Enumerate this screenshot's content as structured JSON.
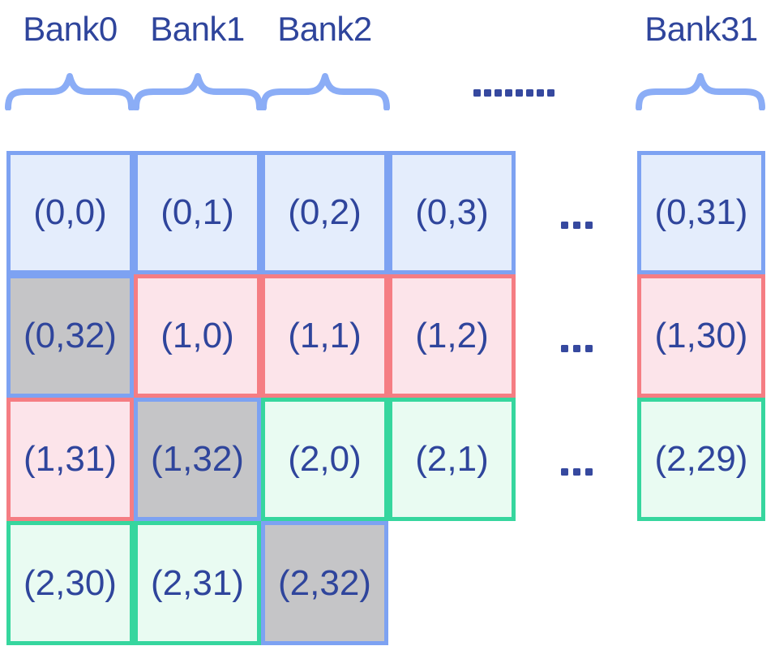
{
  "header": {
    "banks": [
      {
        "label": "Bank0"
      },
      {
        "label": "Bank1"
      },
      {
        "label": "Bank2"
      },
      {
        "label": "Bank31"
      }
    ],
    "dots": "........"
  },
  "grid": {
    "row_dots": [
      "...",
      "...",
      "..."
    ],
    "cells": [
      {
        "label": "(0,0)",
        "row": 0,
        "col": 0,
        "type": "row0"
      },
      {
        "label": "(0,1)",
        "row": 0,
        "col": 1,
        "type": "row0"
      },
      {
        "label": "(0,2)",
        "row": 0,
        "col": 2,
        "type": "row0"
      },
      {
        "label": "(0,3)",
        "row": 0,
        "col": 3,
        "type": "row0"
      },
      {
        "label": "(0,31)",
        "row": 0,
        "col": 5,
        "type": "row0"
      },
      {
        "label": "(0,32)",
        "row": 1,
        "col": 0,
        "type": "pad"
      },
      {
        "label": "(1,0)",
        "row": 1,
        "col": 1,
        "type": "row1"
      },
      {
        "label": "(1,1)",
        "row": 1,
        "col": 2,
        "type": "row1"
      },
      {
        "label": "(1,2)",
        "row": 1,
        "col": 3,
        "type": "row1"
      },
      {
        "label": "(1,30)",
        "row": 1,
        "col": 5,
        "type": "row1"
      },
      {
        "label": "(1,31)",
        "row": 2,
        "col": 0,
        "type": "row1"
      },
      {
        "label": "(1,32)",
        "row": 2,
        "col": 1,
        "type": "pad"
      },
      {
        "label": "(2,0)",
        "row": 2,
        "col": 2,
        "type": "row2"
      },
      {
        "label": "(2,1)",
        "row": 2,
        "col": 3,
        "type": "row2"
      },
      {
        "label": "(2,29)",
        "row": 2,
        "col": 5,
        "type": "row2"
      },
      {
        "label": "(2,30)",
        "row": 3,
        "col": 0,
        "type": "row2"
      },
      {
        "label": "(2,31)",
        "row": 3,
        "col": 1,
        "type": "row2"
      },
      {
        "label": "(2,32)",
        "row": 3,
        "col": 2,
        "type": "pad"
      }
    ]
  },
  "colors": {
    "navy": "#2f459c",
    "blue_border": "#7da2f2",
    "blue_fill": "#e4edfc",
    "red_border": "#f57d83",
    "pink_fill": "#fce4ea",
    "green_border": "#36d69e",
    "green_fill": "#e9fbf2",
    "gray_fill": "#c5c5c7",
    "brace": "#8badf6",
    "dots": "#36499f"
  }
}
